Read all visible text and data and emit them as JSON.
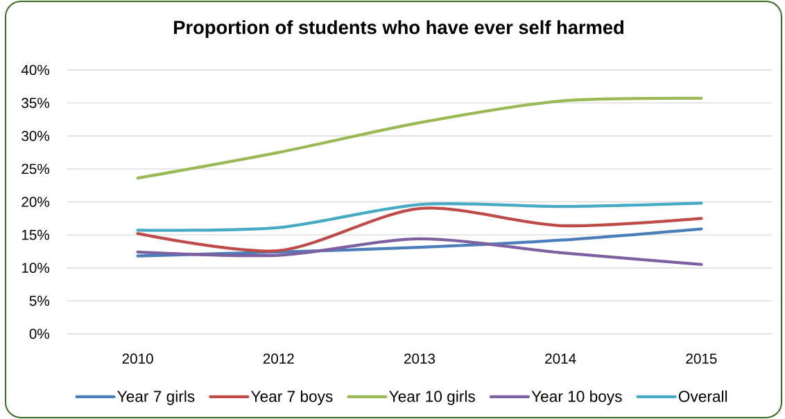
{
  "chart_data": {
    "type": "line",
    "title": "Proportion of students who have ever self harmed",
    "categories": [
      "2010",
      "2012",
      "2013",
      "2014",
      "2015"
    ],
    "series": [
      {
        "name": "Year 7 girls",
        "color": "#4a7ebb",
        "values": [
          11.8,
          12.4,
          13.1,
          14.2,
          15.9
        ]
      },
      {
        "name": "Year 7 boys",
        "color": "#be4b48",
        "values": [
          15.2,
          12.6,
          19.0,
          16.4,
          17.5
        ]
      },
      {
        "name": "Year 10 girls",
        "color": "#98b954",
        "values": [
          23.6,
          27.5,
          32.0,
          35.3,
          35.7
        ]
      },
      {
        "name": "Year 10 boys",
        "color": "#7d60a0",
        "values": [
          12.4,
          11.9,
          14.4,
          12.3,
          10.5
        ]
      },
      {
        "name": "Overall",
        "color": "#46aac5",
        "values": [
          15.7,
          16.1,
          19.6,
          19.3,
          19.8
        ]
      }
    ],
    "ylim": [
      0,
      40
    ],
    "yticks": [
      {
        "value": 0,
        "label": "0%"
      },
      {
        "value": 5,
        "label": "5%"
      },
      {
        "value": 10,
        "label": "10%"
      },
      {
        "value": 15,
        "label": "15%"
      },
      {
        "value": 20,
        "label": "20%"
      },
      {
        "value": 25,
        "label": "25%"
      },
      {
        "value": 30,
        "label": "30%"
      },
      {
        "value": 35,
        "label": "35%"
      },
      {
        "value": 40,
        "label": "40%"
      }
    ],
    "grid": "y",
    "legend": "bottom",
    "marker": "none",
    "line_style": "solid"
  }
}
